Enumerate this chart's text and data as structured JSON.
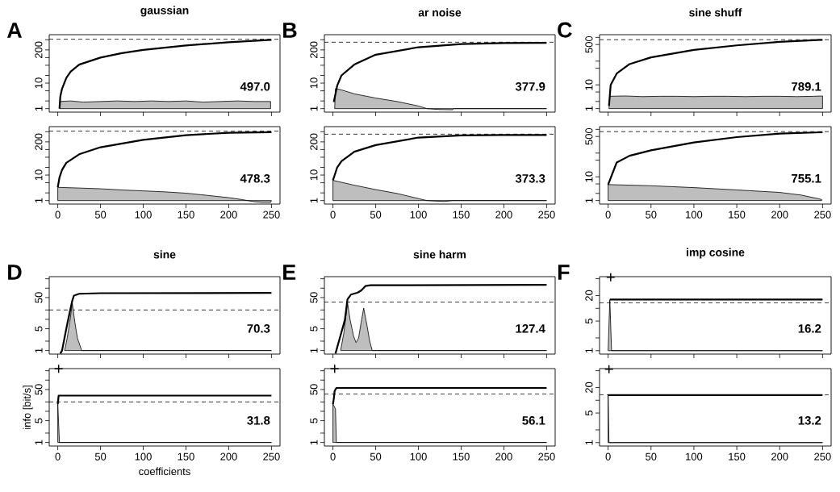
{
  "chart_data": [
    {
      "type": "line",
      "title": "gaussian",
      "annotations": [
        "A",
        "497.0"
      ],
      "log": true,
      "xlim": [
        -10,
        260
      ],
      "xticks": [
        0,
        50,
        100,
        150,
        200,
        250
      ],
      "ylim": [
        0.73,
        790
      ],
      "yticks": [
        1,
        {
          "value": 2,
          "label": null
        },
        {
          "value": 5,
          "label": null
        },
        10,
        {
          "value": 20,
          "label": null
        },
        {
          "value": 50,
          "label": null
        },
        {
          "value": 100,
          "label": null
        },
        200,
        {
          "value": 500,
          "label": null
        }
      ],
      "tick_labels": "y",
      "ref_lines": [
        {
          "axis": "y",
          "value": 525,
          "line_style": "dashed",
          "color": "#000000"
        }
      ],
      "series": [
        {
          "type": "area",
          "color": "#bebebe",
          "x": [
            2,
            3,
            15,
            30,
            50,
            70,
            90,
            110,
            130,
            150,
            170,
            190,
            210,
            230,
            249,
            249
          ],
          "values": [
            1,
            1.9,
            2.0,
            1.8,
            1.9,
            2.0,
            1.9,
            2.0,
            1.9,
            2.0,
            1.8,
            1.9,
            2.0,
            1.9,
            1.9,
            1
          ]
        },
        {
          "type": "line",
          "color": "#000000",
          "x": [
            2,
            3,
            5,
            10,
            15,
            25,
            50,
            75,
            100,
            150,
            200,
            250
          ],
          "values": [
            1,
            3,
            6,
            16,
            28,
            53,
            100,
            150,
            200,
            300,
            400,
            497
          ]
        }
      ]
    },
    {
      "type": "line",
      "annotations": [
        "478.3"
      ],
      "log": true,
      "xlim": [
        -10,
        260
      ],
      "xticks": [
        0,
        50,
        100,
        150,
        200,
        250
      ],
      "ylim": [
        0.73,
        790
      ],
      "yticks": [
        1,
        {
          "value": 2,
          "label": null
        },
        {
          "value": 5,
          "label": null
        },
        10,
        {
          "value": 20,
          "label": null
        },
        {
          "value": 50,
          "label": null
        },
        {
          "value": 100,
          "label": null
        },
        200,
        {
          "value": 500,
          "label": null
        }
      ],
      "ref_lines": [
        {
          "axis": "y",
          "value": 525,
          "line_style": "dashed",
          "color": "#000000"
        }
      ],
      "series": [
        {
          "type": "area",
          "color": "#bebebe",
          "x": [
            0,
            0,
            25,
            50,
            75,
            100,
            125,
            150,
            175,
            200,
            215,
            230,
            240,
            249,
            250
          ],
          "values": [
            1,
            3.3,
            3.1,
            2.9,
            2.6,
            2.4,
            2.2,
            1.95,
            1.6,
            1.3,
            1.1,
            0.9,
            0.85,
            0.85,
            1
          ]
        },
        {
          "type": "line",
          "color": "#000000",
          "x": [
            0,
            2,
            5,
            10,
            25,
            50,
            100,
            150,
            200,
            250
          ],
          "values": [
            3.3,
            8,
            16,
            30,
            65,
            123,
            240,
            365,
            455,
            478.3
          ]
        }
      ]
    },
    {
      "type": "line",
      "title": "ar noise",
      "annotations": [
        "B",
        "377.9"
      ],
      "log": true,
      "xlim": [
        -10,
        260
      ],
      "xticks": [
        0,
        50,
        100,
        150,
        200,
        250
      ],
      "ylim": [
        0.73,
        790
      ],
      "yticks": [
        1,
        {
          "value": 2,
          "label": null
        },
        {
          "value": 5,
          "label": null
        },
        10,
        {
          "value": 20,
          "label": null
        },
        {
          "value": 50,
          "label": null
        },
        {
          "value": 100,
          "label": null
        },
        200,
        {
          "value": 500,
          "label": null
        }
      ],
      "tick_labels": "y",
      "ref_lines": [
        {
          "axis": "y",
          "value": 400,
          "line_style": "dashed",
          "color": "#000000"
        }
      ],
      "series": [
        {
          "type": "area",
          "color": "#bebebe",
          "x": [
            2,
            3,
            10,
            25,
            50,
            75,
            100,
            110,
            125,
            140,
            141,
            250
          ],
          "values": [
            1,
            6.1,
            5.4,
            3.8,
            2.6,
            1.9,
            1.27,
            1,
            0.92,
            0.9,
            1,
            1
          ]
        },
        {
          "type": "line",
          "color": "#000000",
          "x": [
            1,
            5,
            10,
            25,
            50,
            100,
            150,
            200,
            250
          ],
          "values": [
            1.8,
            8,
            20,
            53,
            130,
            255,
            340,
            372,
            377.9
          ]
        }
      ]
    },
    {
      "type": "line",
      "annotations": [
        "373.3"
      ],
      "log": true,
      "xlim": [
        -10,
        260
      ],
      "xticks": [
        0,
        50,
        100,
        150,
        200,
        250
      ],
      "ylim": [
        0.73,
        790
      ],
      "yticks": [
        1,
        {
          "value": 2,
          "label": null
        },
        {
          "value": 5,
          "label": null
        },
        10,
        {
          "value": 20,
          "label": null
        },
        {
          "value": 50,
          "label": null
        },
        {
          "value": 100,
          "label": null
        },
        200,
        {
          "value": 500,
          "label": null
        }
      ],
      "ref_lines": [
        {
          "axis": "y",
          "value": 400,
          "line_style": "dashed",
          "color": "#000000"
        }
      ],
      "series": [
        {
          "type": "area",
          "color": "#bebebe",
          "x": [
            0,
            0,
            25,
            50,
            75,
            100,
            110,
            130,
            140,
            250
          ],
          "values": [
            1,
            6.2,
            4.0,
            2.7,
            1.9,
            1.2,
            1,
            0.92,
            1,
            1
          ]
        },
        {
          "type": "line",
          "color": "#000000",
          "x": [
            0,
            5,
            10,
            25,
            50,
            100,
            150,
            200,
            250
          ],
          "values": [
            6.2,
            20,
            35,
            82,
            150,
            295,
            360,
            371,
            373.3
          ]
        }
      ]
    },
    {
      "type": "line",
      "title": "sine shuff",
      "annotations": [
        "C",
        "789.1"
      ],
      "log": true,
      "xlim": [
        -10,
        260
      ],
      "xticks": [
        0,
        50,
        100,
        150,
        200,
        250
      ],
      "ylim": [
        0.71,
        1300
      ],
      "yticks": [
        1,
        {
          "value": 2,
          "label": null
        },
        {
          "value": 5,
          "label": null
        },
        10,
        {
          "value": 50,
          "label": null
        },
        {
          "value": 100,
          "label": null
        },
        500,
        {
          "value": 1000,
          "label": null
        }
      ],
      "tick_labels": "y",
      "ref_lines": [
        {
          "axis": "y",
          "value": 800,
          "line_style": "dashed",
          "color": "#000000"
        }
      ],
      "series": [
        {
          "type": "area",
          "color": "#bebebe",
          "x": [
            1,
            2,
            20,
            40,
            60,
            80,
            100,
            120,
            140,
            160,
            180,
            200,
            220,
            240,
            250,
            250
          ],
          "values": [
            1,
            3.3,
            3.4,
            3.2,
            3.3,
            3.3,
            3.2,
            3.3,
            3.3,
            3.2,
            3.3,
            3.3,
            3.2,
            3.3,
            3.4,
            1
          ]
        },
        {
          "type": "line",
          "color": "#000000",
          "x": [
            1,
            3,
            10,
            25,
            50,
            100,
            150,
            200,
            250
          ],
          "values": [
            1.3,
            10,
            30,
            75,
            144,
            297,
            460,
            645,
            789.1
          ]
        }
      ]
    },
    {
      "type": "line",
      "annotations": [
        "755.1"
      ],
      "log": true,
      "xlim": [
        -10,
        260
      ],
      "xticks": [
        0,
        50,
        100,
        150,
        200,
        250
      ],
      "ylim": [
        0.71,
        1300
      ],
      "yticks": [
        1,
        {
          "value": 2,
          "label": null
        },
        {
          "value": 5,
          "label": null
        },
        10,
        {
          "value": 50,
          "label": null
        },
        {
          "value": 100,
          "label": null
        },
        500,
        {
          "value": 1000,
          "label": null
        }
      ],
      "ref_lines": [
        {
          "axis": "y",
          "value": 800,
          "line_style": "dashed",
          "color": "#000000"
        }
      ],
      "series": [
        {
          "type": "area",
          "color": "#bebebe",
          "x": [
            0,
            0,
            50,
            100,
            150,
            200,
            225,
            245,
            249,
            249
          ],
          "values": [
            1,
            4.7,
            4.2,
            3.5,
            2.8,
            2.2,
            1.7,
            1.2,
            1.1,
            1
          ]
        },
        {
          "type": "line",
          "color": "#000000",
          "x": [
            0,
            10,
            25,
            50,
            100,
            150,
            200,
            250
          ],
          "values": [
            4.7,
            40,
            77,
            130,
            280,
            470,
            660,
            755.1
          ]
        }
      ]
    },
    {
      "type": "line",
      "title": "sine",
      "annotations": [
        "D",
        "70.3"
      ],
      "log": true,
      "xlim": [
        -10,
        260
      ],
      "xticks": [
        0,
        50,
        100,
        150,
        200,
        250
      ],
      "ylim": [
        0.77,
        234
      ],
      "yticks": [
        1,
        {
          "value": 2,
          "label": null
        },
        5,
        {
          "value": 10,
          "label": null
        },
        {
          "value": 20,
          "label": null
        },
        50,
        {
          "value": 100,
          "label": null
        },
        {
          "value": 200,
          "label": null
        }
      ],
      "tick_labels": "y",
      "ref_lines": [
        {
          "axis": "y",
          "value": 20,
          "line_style": "dashed",
          "color": "#000000"
        }
      ],
      "series": [
        {
          "type": "area",
          "color": "#bebebe",
          "x": [
            8,
            11,
            14,
            17,
            20,
            23,
            28,
            250
          ],
          "values": [
            1,
            2.5,
            8,
            33,
            8,
            2.5,
            1,
            1
          ]
        },
        {
          "type": "line",
          "color": "#000000",
          "x": [
            3,
            5,
            10,
            14,
            17,
            19,
            25,
            50,
            250
          ],
          "values": [
            0.8,
            1,
            5,
            17,
            40,
            58,
            66,
            69,
            70.3
          ]
        }
      ]
    },
    {
      "type": "line",
      "xlabel": "coefficients",
      "ylabel": "info [bit/s]",
      "annotations": [
        "31.8"
      ],
      "log": true,
      "xlim": [
        -10,
        260
      ],
      "xticks": [
        0,
        50,
        100,
        150,
        200,
        250
      ],
      "ylim": [
        0.77,
        234
      ],
      "yticks": [
        1,
        {
          "value": 2,
          "label": null
        },
        5,
        {
          "value": 10,
          "label": null
        },
        {
          "value": 20,
          "label": null
        },
        50,
        {
          "value": 100,
          "label": null
        },
        {
          "value": 200,
          "label": null
        }
      ],
      "ref_lines": [
        {
          "axis": "y",
          "value": 20,
          "line_style": "dashed",
          "color": "#000000"
        }
      ],
      "series": [
        {
          "type": "area",
          "color": "#bebebe",
          "x": [
            0,
            0,
            2,
            250
          ],
          "values": [
            1,
            17,
            1,
            1
          ]
        },
        {
          "type": "line",
          "color": "#000000",
          "x": [
            0,
            1,
            250
          ],
          "values": [
            17,
            31.8,
            31.8
          ]
        },
        {
          "type": "scatter",
          "color": "#000000",
          "marker": "cross",
          "x": [
            1
          ],
          "values": [
            230
          ]
        }
      ]
    },
    {
      "type": "line",
      "title": "sine harm",
      "annotations": [
        "E",
        "127.4"
      ],
      "log": true,
      "xlim": [
        -10,
        260
      ],
      "xticks": [
        0,
        50,
        100,
        150,
        200,
        250
      ],
      "ylim": [
        0.77,
        234
      ],
      "yticks": [
        1,
        {
          "value": 2,
          "label": null
        },
        5,
        {
          "value": 10,
          "label": null
        },
        {
          "value": 20,
          "label": null
        },
        50,
        {
          "value": 100,
          "label": null
        },
        {
          "value": 200,
          "label": null
        }
      ],
      "tick_labels": "y",
      "ref_lines": [
        {
          "axis": "y",
          "value": 36,
          "line_style": "dashed",
          "color": "#000000"
        }
      ],
      "series": [
        {
          "type": "area",
          "color": "#bebebe",
          "x": [
            9,
            13,
            17,
            20,
            24,
            27,
            30,
            33,
            36,
            40,
            43,
            46,
            250
          ],
          "values": [
            1,
            4,
            36,
            10,
            3,
            1.8,
            2.5,
            8,
            23,
            6,
            2,
            1,
            1
          ]
        },
        {
          "type": "line",
          "color": "#000000",
          "x": [
            3,
            7,
            14,
            17,
            21,
            29,
            33,
            38,
            44,
            250
          ],
          "values": [
            0.8,
            2,
            9.6,
            44,
            62,
            72,
            84,
            117,
            124,
            127.4
          ]
        }
      ]
    },
    {
      "type": "line",
      "annotations": [
        "56.1"
      ],
      "log": true,
      "xlim": [
        -10,
        260
      ],
      "xticks": [
        0,
        50,
        100,
        150,
        200,
        250
      ],
      "ylim": [
        0.77,
        234
      ],
      "yticks": [
        1,
        {
          "value": 2,
          "label": null
        },
        5,
        {
          "value": 10,
          "label": null
        },
        {
          "value": 20,
          "label": null
        },
        50,
        {
          "value": 100,
          "label": null
        },
        {
          "value": 200,
          "label": null
        }
      ],
      "ref_lines": [
        {
          "axis": "y",
          "value": 36,
          "line_style": "dashed",
          "color": "#000000"
        }
      ],
      "series": [
        {
          "type": "area",
          "color": "#bebebe",
          "x": [
            0,
            0,
            3,
            4,
            250
          ],
          "values": [
            1,
            17,
            12,
            1,
            1
          ]
        },
        {
          "type": "line",
          "color": "#000000",
          "x": [
            0,
            1,
            2,
            4,
            250
          ],
          "values": [
            17,
            25,
            45,
            56.1,
            56.1
          ]
        },
        {
          "type": "scatter",
          "color": "#000000",
          "marker": "cross",
          "x": [
            2
          ],
          "values": [
            230
          ]
        }
      ]
    },
    {
      "type": "line",
      "title": "imp cosine",
      "annotations": [
        "F",
        "16.2"
      ],
      "log": true,
      "xlim": [
        -10,
        260
      ],
      "xticks": [
        0,
        50,
        100,
        150,
        200,
        250
      ],
      "ylim": [
        0.83,
        56
      ],
      "yticks": [
        1,
        {
          "value": 2,
          "label": null
        },
        5,
        {
          "value": 10,
          "label": null
        },
        20,
        {
          "value": 50,
          "label": null
        }
      ],
      "tick_labels": "y",
      "ref_lines": [
        {
          "axis": "y",
          "value": 13.4,
          "line_style": "dashed",
          "color": "#000000"
        }
      ],
      "series": [
        {
          "type": "area",
          "color": "#bebebe",
          "x": [
            0,
            2,
            4,
            250
          ],
          "values": [
            1,
            16,
            1,
            1
          ]
        },
        {
          "type": "line",
          "color": "#000000",
          "x": [
            2,
            250
          ],
          "values": [
            16.2,
            16.2
          ]
        },
        {
          "type": "scatter",
          "color": "#000000",
          "marker": "cross",
          "x": [
            3
          ],
          "values": [
            54
          ]
        }
      ]
    },
    {
      "type": "line",
      "annotations": [
        "13.2"
      ],
      "log": true,
      "xlim": [
        -10,
        260
      ],
      "xticks": [
        0,
        50,
        100,
        150,
        200,
        250
      ],
      "ylim": [
        0.83,
        56
      ],
      "yticks": [
        1,
        {
          "value": 2,
          "label": null
        },
        5,
        {
          "value": 10,
          "label": null
        },
        20,
        {
          "value": 50,
          "label": null
        }
      ],
      "ref_lines": [
        {
          "axis": "y",
          "value": 13.4,
          "line_style": "dashed",
          "color": "#000000"
        }
      ],
      "series": [
        {
          "type": "area",
          "color": "#bebebe",
          "x": [
            0,
            0,
            1,
            250
          ],
          "values": [
            1,
            13.2,
            1,
            1
          ]
        },
        {
          "type": "line",
          "color": "#000000",
          "x": [
            0,
            250
          ],
          "values": [
            13.2,
            13.2
          ]
        },
        {
          "type": "scatter",
          "color": "#000000",
          "marker": "cross",
          "x": [
            1
          ],
          "values": [
            54
          ]
        }
      ]
    }
  ]
}
